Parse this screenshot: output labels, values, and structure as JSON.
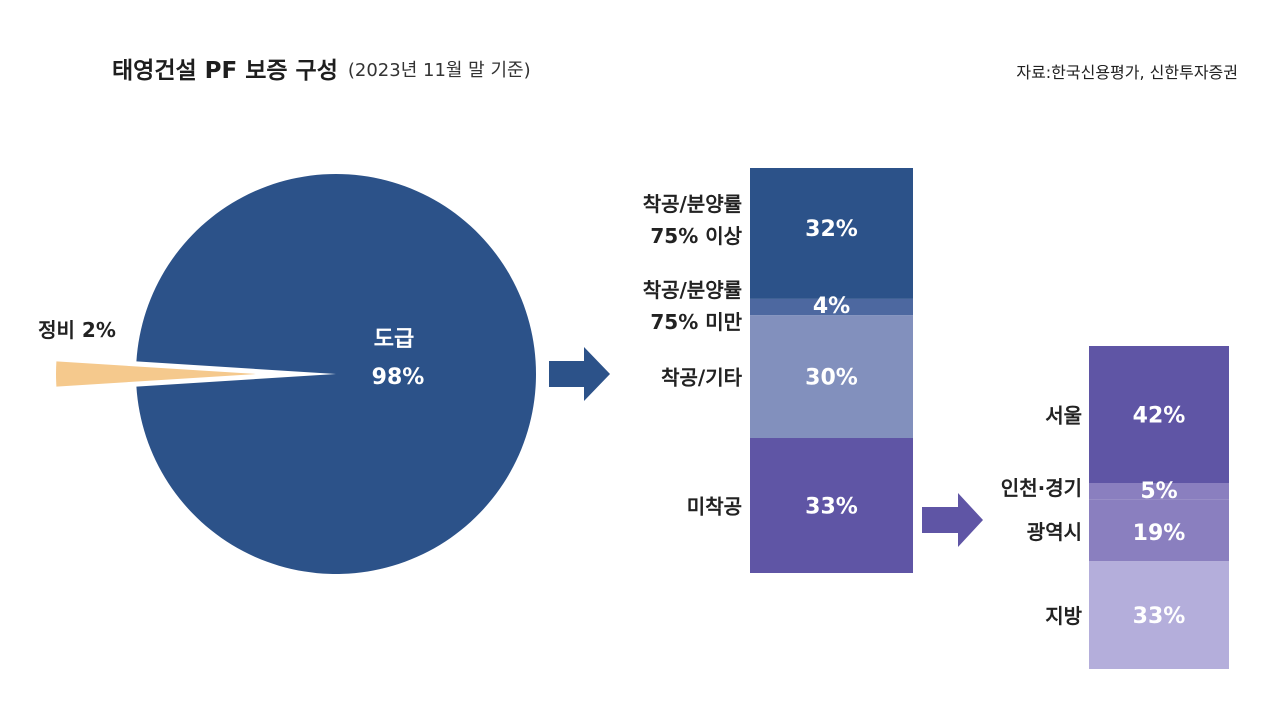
{
  "header": {
    "title": "태영건설 PF 보증 구성",
    "subtitle": "(2023년 11월 말 기준)",
    "source": "자료:한국신용평가, 신한투자증권"
  },
  "colors": {
    "navy": "#2c5289",
    "navy_light": "#4d68a0",
    "slate": "#8290bd",
    "purple": "#5f55a5",
    "purple_mid": "#8a7fbf",
    "lavender": "#b4aedb",
    "gold": "#f5c98d"
  },
  "chart_data": [
    {
      "type": "pie",
      "categories": [
        "도급",
        "정비"
      ],
      "values": [
        98,
        2
      ],
      "labels": {
        "main": "도급",
        "main_value": "98%",
        "small": "정비 2%"
      }
    },
    {
      "type": "bar",
      "stacked": true,
      "categories": [
        "착공/분양률 75% 이상",
        "착공/분양률 75% 미만",
        "착공/기타",
        "미착공"
      ],
      "values": [
        32,
        4,
        30,
        33
      ],
      "labels": [
        {
          "lines": [
            "착공/분양률",
            "75% 이상"
          ],
          "value": "32%"
        },
        {
          "lines": [
            "착공/분양률",
            "75% 미만"
          ],
          "value": "4%"
        },
        {
          "lines": [
            "착공/기타"
          ],
          "value": "30%"
        },
        {
          "lines": [
            "미착공"
          ],
          "value": "33%"
        }
      ]
    },
    {
      "type": "bar",
      "stacked": true,
      "categories": [
        "서울",
        "인천·경기",
        "광역시",
        "지방"
      ],
      "values": [
        42,
        5,
        19,
        33
      ],
      "labels": [
        {
          "lines": [
            "서울"
          ],
          "value": "42%"
        },
        {
          "lines": [
            "인천·경기"
          ],
          "value": "5%"
        },
        {
          "lines": [
            "광역시"
          ],
          "value": "19%"
        },
        {
          "lines": [
            "지방"
          ],
          "value": "33%"
        }
      ]
    }
  ]
}
